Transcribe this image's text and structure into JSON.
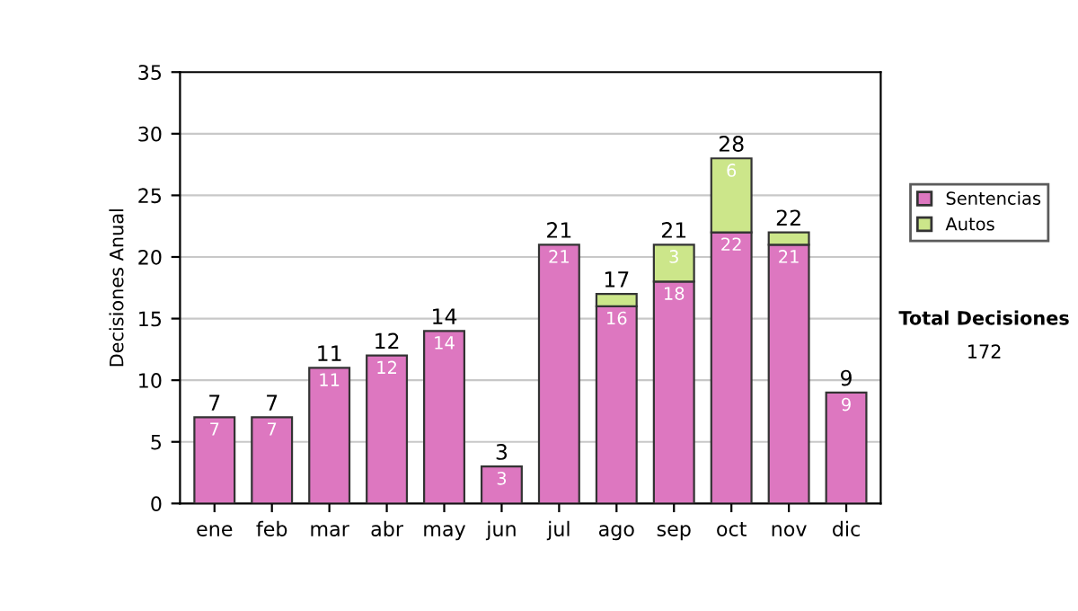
{
  "chart_data": {
    "type": "bar",
    "ylabel": "Decisiones Anual",
    "categories": [
      "ene",
      "feb",
      "mar",
      "abr",
      "may",
      "jun",
      "jul",
      "ago",
      "sep",
      "oct",
      "nov",
      "dic"
    ],
    "series": [
      {
        "name": "Sentencias",
        "color": "#dd77c0",
        "values": [
          7,
          7,
          11,
          12,
          14,
          3,
          21,
          16,
          18,
          22,
          21,
          9
        ],
        "value_labels": [
          "7",
          "7",
          "11",
          "12",
          "14",
          "3",
          "21",
          "16",
          "18",
          "22",
          "21",
          "9"
        ]
      },
      {
        "name": "Autos",
        "color": "#cce68a",
        "values": [
          null,
          null,
          null,
          null,
          null,
          null,
          null,
          1,
          3,
          6,
          1,
          null
        ],
        "value_labels": [
          null,
          null,
          null,
          null,
          null,
          null,
          null,
          null,
          "3",
          "6",
          null,
          null
        ]
      }
    ],
    "stacked": true,
    "totals": [
      "7",
      "7",
      "11",
      "12",
      "14",
      "3",
      "21",
      "17",
      "21",
      "28",
      "22",
      "9"
    ],
    "ylim": [
      0,
      35
    ],
    "yticks": [
      0,
      5,
      10,
      15,
      20,
      25,
      30,
      35
    ],
    "grid": "y",
    "legend": "right",
    "annotations": [
      "Total Decisiones",
      "172"
    ]
  }
}
